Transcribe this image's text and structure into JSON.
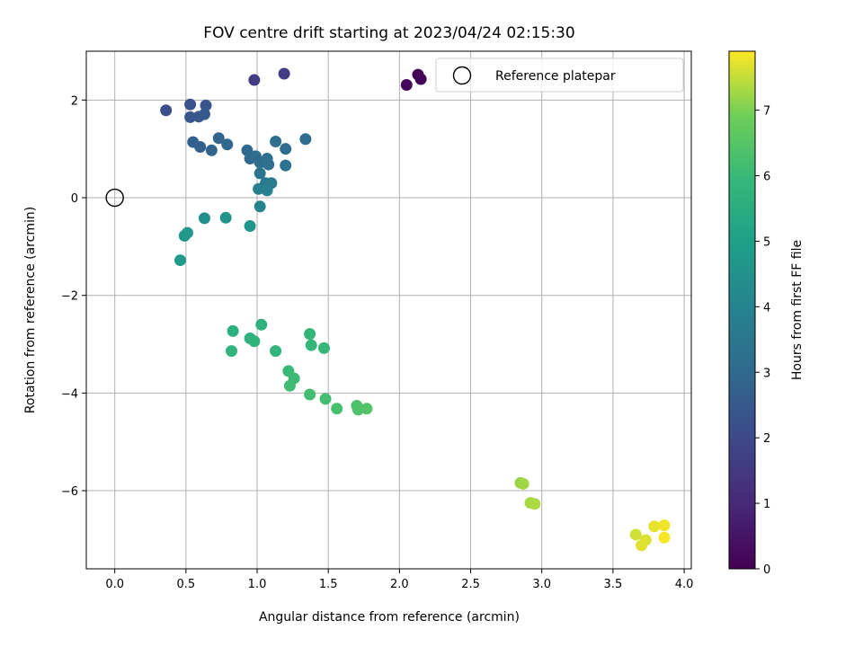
{
  "chart_data": {
    "type": "scatter",
    "title": "FOV centre drift starting at 2023/04/24 02:15:30",
    "xlabel": "Angular distance from reference (arcmin)",
    "ylabel": "Rotation from reference (arcmin)",
    "xlim": [
      -0.2,
      4.05
    ],
    "ylim": [
      -7.6,
      3.0
    ],
    "xticks": [
      0.0,
      0.5,
      1.0,
      1.5,
      2.0,
      2.5,
      3.0,
      3.5,
      4.0
    ],
    "xtick_labels": [
      "0.0",
      "0.5",
      "1.0",
      "1.5",
      "2.0",
      "2.5",
      "3.0",
      "3.5",
      "4.0"
    ],
    "yticks": [
      2,
      0,
      -2,
      -4,
      -6
    ],
    "ytick_labels": [
      "2",
      "0",
      "−2",
      "−4",
      "−6"
    ],
    "grid": true,
    "legend": {
      "label": "Reference platepar",
      "placement": "top-right"
    },
    "reference_point": {
      "x": 0.0,
      "y": 0.0
    },
    "colorbar": {
      "label": "Hours from first FF file",
      "colormap": "viridis",
      "range": [
        0,
        7.9
      ],
      "ticks": [
        0,
        1,
        2,
        3,
        4,
        5,
        6,
        7
      ],
      "tick_labels": [
        "0",
        "1",
        "2",
        "3",
        "4",
        "5",
        "6",
        "7"
      ]
    },
    "points": [
      {
        "x": 2.13,
        "y": 2.52,
        "c": 0.05
      },
      {
        "x": 2.15,
        "y": 2.43,
        "c": 0.1
      },
      {
        "x": 2.05,
        "y": 2.31,
        "c": 0.2
      },
      {
        "x": 0.98,
        "y": 2.41,
        "c": 1.6
      },
      {
        "x": 1.19,
        "y": 2.54,
        "c": 1.65
      },
      {
        "x": 0.36,
        "y": 1.79,
        "c": 2.2
      },
      {
        "x": 0.53,
        "y": 1.91,
        "c": 2.3
      },
      {
        "x": 0.64,
        "y": 1.89,
        "c": 2.35
      },
      {
        "x": 0.53,
        "y": 1.65,
        "c": 2.4
      },
      {
        "x": 0.59,
        "y": 1.66,
        "c": 2.45
      },
      {
        "x": 0.63,
        "y": 1.71,
        "c": 2.5
      },
      {
        "x": 0.55,
        "y": 1.14,
        "c": 2.7
      },
      {
        "x": 0.6,
        "y": 1.04,
        "c": 2.75
      },
      {
        "x": 0.68,
        "y": 0.97,
        "c": 2.85
      },
      {
        "x": 0.73,
        "y": 1.22,
        "c": 2.9
      },
      {
        "x": 0.79,
        "y": 1.09,
        "c": 2.95
      },
      {
        "x": 0.93,
        "y": 0.97,
        "c": 3.0
      },
      {
        "x": 0.95,
        "y": 0.8,
        "c": 3.05
      },
      {
        "x": 0.99,
        "y": 0.85,
        "c": 3.1
      },
      {
        "x": 1.02,
        "y": 0.72,
        "c": 3.15
      },
      {
        "x": 1.07,
        "y": 0.8,
        "c": 3.2
      },
      {
        "x": 1.08,
        "y": 0.68,
        "c": 3.25
      },
      {
        "x": 1.13,
        "y": 1.15,
        "c": 3.2
      },
      {
        "x": 1.2,
        "y": 1.0,
        "c": 3.15
      },
      {
        "x": 1.34,
        "y": 1.2,
        "c": 3.1
      },
      {
        "x": 1.2,
        "y": 0.66,
        "c": 3.35
      },
      {
        "x": 1.02,
        "y": 0.5,
        "c": 3.5
      },
      {
        "x": 1.06,
        "y": 0.3,
        "c": 3.6
      },
      {
        "x": 1.1,
        "y": 0.3,
        "c": 3.7
      },
      {
        "x": 1.01,
        "y": 0.18,
        "c": 3.8
      },
      {
        "x": 1.07,
        "y": 0.15,
        "c": 3.9
      },
      {
        "x": 1.02,
        "y": -0.18,
        "c": 4.0
      },
      {
        "x": 0.63,
        "y": -0.42,
        "c": 4.4
      },
      {
        "x": 0.78,
        "y": -0.41,
        "c": 4.5
      },
      {
        "x": 0.95,
        "y": -0.58,
        "c": 4.6
      },
      {
        "x": 0.49,
        "y": -0.78,
        "c": 4.7
      },
      {
        "x": 0.51,
        "y": -0.72,
        "c": 4.75
      },
      {
        "x": 0.46,
        "y": -1.28,
        "c": 4.8
      },
      {
        "x": 0.83,
        "y": -2.73,
        "c": 5.6
      },
      {
        "x": 1.03,
        "y": -2.6,
        "c": 5.65
      },
      {
        "x": 0.95,
        "y": -2.88,
        "c": 5.7
      },
      {
        "x": 0.98,
        "y": -2.94,
        "c": 5.72
      },
      {
        "x": 0.82,
        "y": -3.14,
        "c": 5.75
      },
      {
        "x": 1.13,
        "y": -3.14,
        "c": 5.8
      },
      {
        "x": 1.37,
        "y": -2.79,
        "c": 5.85
      },
      {
        "x": 1.38,
        "y": -3.02,
        "c": 5.9
      },
      {
        "x": 1.47,
        "y": -3.08,
        "c": 5.95
      },
      {
        "x": 1.22,
        "y": -3.55,
        "c": 6.0
      },
      {
        "x": 1.26,
        "y": -3.7,
        "c": 6.05
      },
      {
        "x": 1.23,
        "y": -3.85,
        "c": 6.1
      },
      {
        "x": 1.37,
        "y": -4.03,
        "c": 6.15
      },
      {
        "x": 1.48,
        "y": -4.12,
        "c": 6.2
      },
      {
        "x": 1.56,
        "y": -4.32,
        "c": 6.25
      },
      {
        "x": 1.7,
        "y": -4.26,
        "c": 6.35
      },
      {
        "x": 1.71,
        "y": -4.34,
        "c": 6.4
      },
      {
        "x": 1.77,
        "y": -4.32,
        "c": 6.45
      },
      {
        "x": 2.85,
        "y": -5.84,
        "c": 7.2
      },
      {
        "x": 2.87,
        "y": -5.86,
        "c": 7.25
      },
      {
        "x": 2.92,
        "y": -6.25,
        "c": 7.3
      },
      {
        "x": 2.95,
        "y": -6.27,
        "c": 7.35
      },
      {
        "x": 3.66,
        "y": -6.9,
        "c": 7.6
      },
      {
        "x": 3.73,
        "y": -7.01,
        "c": 7.65
      },
      {
        "x": 3.7,
        "y": -7.12,
        "c": 7.7
      },
      {
        "x": 3.79,
        "y": -6.73,
        "c": 7.75
      },
      {
        "x": 3.86,
        "y": -6.71,
        "c": 7.8
      },
      {
        "x": 3.86,
        "y": -6.96,
        "c": 7.85
      }
    ]
  }
}
